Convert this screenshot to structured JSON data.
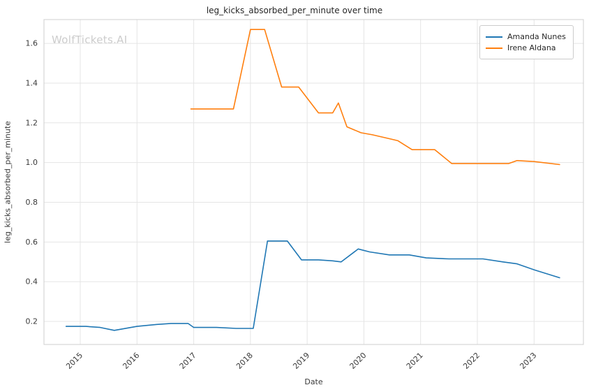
{
  "watermark": "WolfTickets.AI",
  "chart_data": {
    "type": "line",
    "title": "leg_kicks_absorbed_per_minute over time",
    "xlabel": "Date",
    "ylabel": "leg_kicks_absorbed_per_minute",
    "xlim": [
      2014.36,
      2023.87
    ],
    "ylim": [
      0.084,
      1.72
    ],
    "x_ticks": [
      2015,
      2016,
      2017,
      2018,
      2019,
      2020,
      2021,
      2022,
      2023
    ],
    "y_ticks": [
      0.2,
      0.4,
      0.6,
      0.8,
      1.0,
      1.2,
      1.4,
      1.6
    ],
    "grid": true,
    "legend_position": "upper right",
    "background": "#ffffff",
    "grid_color": "#e5e5e5",
    "series": [
      {
        "name": "Amanda Nunes",
        "color": "#1f77b4",
        "x": [
          2014.75,
          2015.1,
          2015.35,
          2015.6,
          2016.0,
          2016.35,
          2016.6,
          2016.9,
          2017.0,
          2017.4,
          2017.75,
          2018.05,
          2018.3,
          2018.65,
          2018.9,
          2019.2,
          2019.45,
          2019.6,
          2019.9,
          2020.1,
          2020.45,
          2020.8,
          2021.1,
          2021.5,
          2022.1,
          2022.45,
          2022.7,
          2023.0,
          2023.45
        ],
        "y": [
          0.175,
          0.175,
          0.17,
          0.155,
          0.175,
          0.185,
          0.19,
          0.19,
          0.17,
          0.17,
          0.165,
          0.165,
          0.605,
          0.605,
          0.51,
          0.51,
          0.505,
          0.5,
          0.565,
          0.55,
          0.535,
          0.535,
          0.52,
          0.515,
          0.515,
          0.5,
          0.49,
          0.46,
          0.42
        ]
      },
      {
        "name": "Irene Aldana",
        "color": "#ff7f0e",
        "x": [
          2016.95,
          2017.35,
          2017.7,
          2018.0,
          2018.25,
          2018.55,
          2018.85,
          2019.2,
          2019.45,
          2019.55,
          2019.7,
          2019.95,
          2020.15,
          2020.45,
          2020.6,
          2020.85,
          2021.25,
          2021.55,
          2021.9,
          2022.2,
          2022.55,
          2022.7,
          2023.0,
          2023.45
        ],
        "y": [
          1.27,
          1.27,
          1.27,
          1.67,
          1.67,
          1.38,
          1.38,
          1.25,
          1.25,
          1.3,
          1.18,
          1.15,
          1.14,
          1.12,
          1.11,
          1.065,
          1.065,
          0.995,
          0.995,
          0.995,
          0.995,
          1.01,
          1.005,
          0.99
        ]
      }
    ]
  }
}
